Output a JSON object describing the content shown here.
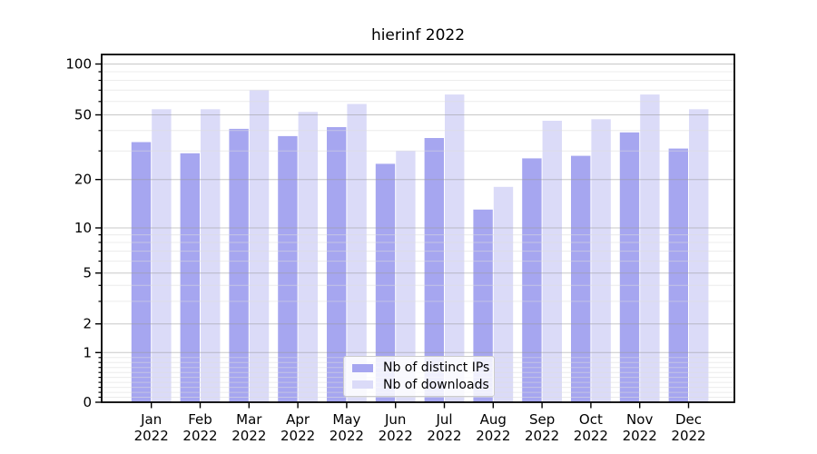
{
  "figure": {
    "background": "#ffffff"
  },
  "chart_data": {
    "type": "bar",
    "title": "hierinf 2022",
    "categories": [
      "Jan",
      "Feb",
      "Mar",
      "Apr",
      "May",
      "Jun",
      "Jul",
      "Aug",
      "Sep",
      "Oct",
      "Nov",
      "Dec"
    ],
    "category_year": "2022",
    "series": [
      {
        "name": "Nb of distinct IPs",
        "color": "#a6a6f0",
        "values": [
          34,
          29,
          41,
          37,
          42,
          25,
          36,
          13,
          27,
          28,
          39,
          31
        ]
      },
      {
        "name": "Nb of downloads",
        "color": "#dbdbf8",
        "values": [
          54,
          54,
          70,
          52,
          58,
          30,
          66,
          18,
          46,
          47,
          66,
          54
        ]
      }
    ],
    "xlabel": "",
    "ylabel": "",
    "yscale": "log-like (symlog) with 0 baseline",
    "ylim": [
      0,
      115
    ],
    "yticks_major": [
      100,
      50,
      20,
      10,
      5,
      2,
      1,
      0
    ],
    "yticks_minor": [
      90,
      80,
      70,
      60,
      40,
      30,
      9,
      8,
      7,
      6,
      4,
      3,
      0.9,
      0.8,
      0.7,
      0.6,
      0.5,
      0.4,
      0.3,
      0.2,
      0.1
    ],
    "scale_anchors_value_to_py": [
      [
        100,
        70.5
      ],
      [
        50,
        126.5
      ],
      [
        20,
        197.7
      ],
      [
        10,
        251
      ],
      [
        5,
        300.7
      ],
      [
        2,
        356.7
      ],
      [
        1,
        388.3
      ],
      [
        0,
        443
      ]
    ],
    "grid": true,
    "grid_major_color": "#9a9a9a",
    "grid_minor_color": "#dddddd",
    "axis_color": "#000000",
    "legend_position": "lower center",
    "legend_labels": [
      "Nb of distinct IPs",
      "Nb of downloads"
    ]
  }
}
